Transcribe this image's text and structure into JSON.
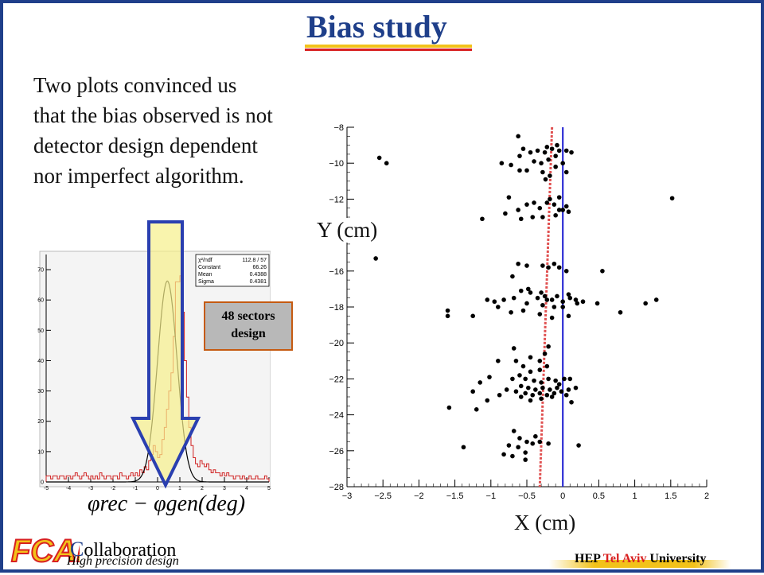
{
  "slide": {
    "title": "Bias study",
    "intro_lines": [
      "Two plots convinced us",
      "that the bias observed is not",
      "detector design dependent",
      "nor imperfect algorithm."
    ],
    "y_axis_label": "Y (cm)",
    "x_axis_label": "X (cm)",
    "sectors_label_line1": "48 sectors",
    "sectors_label_line2": "design",
    "formula_label": "φrec − φgen(deg)",
    "footer": {
      "logo_text": "FCAL",
      "collab_first": "C",
      "collab_rest": "ollaboration",
      "tagline": "High precision design",
      "hep_prefix": "HEP ",
      "hep_city": "Tel Aviv",
      "hep_suffix": " University"
    },
    "colors": {
      "title": "#1f3f8a",
      "accent_yellow": "#f2c21a",
      "accent_red": "#d82020",
      "arrow_border": "#2a3fb0",
      "arrow_fill": "#f7f08a",
      "histogram": "#d02020",
      "fit_curve": "#000000",
      "blue_line": "#1a1ad0",
      "red_dashed_line": "#e05050"
    }
  },
  "chart_data": [
    {
      "type": "bar",
      "title": "",
      "xlabel": "φrec − φgen(deg)",
      "ylabel": "",
      "xlim": [
        -5,
        5
      ],
      "ylim": [
        0,
        75
      ],
      "xticks": [
        -5,
        -4,
        -3,
        -2,
        -1,
        0,
        1,
        2,
        3,
        4,
        5
      ],
      "yticks": [
        0,
        10,
        20,
        30,
        40,
        50,
        60,
        70
      ],
      "bin_width": 0.1,
      "x_start": -5,
      "values": [
        2,
        2,
        1,
        2,
        2,
        1,
        2,
        2,
        1,
        2,
        2,
        1,
        2,
        3,
        2,
        1,
        2,
        3,
        2,
        1,
        2,
        1,
        2,
        1,
        3,
        2,
        1,
        2,
        2,
        1,
        2,
        2,
        1,
        3,
        2,
        2,
        1,
        2,
        3,
        2,
        3,
        2,
        4,
        3,
        5,
        4,
        7,
        9,
        12,
        10,
        8,
        9,
        14,
        18,
        24,
        30,
        36,
        48,
        66,
        66,
        68,
        56,
        40,
        28,
        18,
        12,
        8,
        6,
        5,
        7,
        6,
        5,
        6,
        4,
        3,
        4,
        3,
        3,
        2,
        3,
        2,
        3,
        2,
        2,
        1,
        2,
        2,
        1,
        2,
        1,
        1,
        2,
        1,
        1,
        2,
        1,
        1,
        1,
        2,
        1
      ],
      "fit": {
        "type": "gaussian",
        "constant": 66.26,
        "mean": 0.4388,
        "sigma": 0.4381
      },
      "stats_box": [
        {
          "label": "χ²/ndf",
          "value": "112.8  /  57"
        },
        {
          "label": "Constant",
          "value": "66.26"
        },
        {
          "label": "Mean",
          "value": "0.4388"
        },
        {
          "label": "Sigma",
          "value": "0.4381"
        }
      ]
    },
    {
      "type": "scatter",
      "title": "",
      "xlabel": "X (cm)",
      "ylabel": "Y (cm)",
      "xlim": [
        -3,
        2
      ],
      "ylim": [
        -28,
        -8
      ],
      "xticks": [
        -3,
        -2.5,
        -2,
        -1.5,
        -1,
        -0.5,
        0,
        0.5,
        1,
        1.5,
        2
      ],
      "yticks": [
        -8,
        -10,
        -12,
        -14,
        -16,
        -18,
        -20,
        -22,
        -24,
        -26,
        -28
      ],
      "vertical_lines": [
        {
          "style": "solid",
          "color": "blue",
          "x": 0.0
        },
        {
          "style": "dashed",
          "color": "red",
          "x_top": -0.15,
          "x_bottom": -0.32
        }
      ],
      "points": [
        [
          -0.62,
          -8.5
        ],
        [
          -0.55,
          -9.2
        ],
        [
          -0.6,
          -9.6
        ],
        [
          -0.45,
          -9.4
        ],
        [
          -0.35,
          -9.3
        ],
        [
          -0.25,
          -9.4
        ],
        [
          -0.15,
          -9.2
        ],
        [
          -0.05,
          -9.3
        ],
        [
          0.05,
          -9.3
        ],
        [
          0.12,
          -9.4
        ],
        [
          -0.4,
          -9.9
        ],
        [
          -0.3,
          -10.0
        ],
        [
          -0.2,
          -9.8
        ],
        [
          -0.1,
          -10.2
        ],
        [
          0.0,
          -10.0
        ],
        [
          -0.5,
          -10.4
        ],
        [
          -0.28,
          -10.5
        ],
        [
          -0.18,
          -10.7
        ],
        [
          -0.72,
          -10.1
        ],
        [
          -0.85,
          -10.0
        ],
        [
          -0.6,
          -10.4
        ],
        [
          0.05,
          -10.5
        ],
        [
          -0.1,
          -9.6
        ],
        [
          -0.08,
          -9.0
        ],
        [
          -0.22,
          -9.1
        ],
        [
          -2.55,
          -9.7
        ],
        [
          -2.45,
          -10.0
        ],
        [
          -0.24,
          -10.9
        ],
        [
          -0.62,
          -12.6
        ],
        [
          -0.5,
          -12.3
        ],
        [
          -0.4,
          -12.2
        ],
        [
          -0.32,
          -12.5
        ],
        [
          -0.22,
          -12.2
        ],
        [
          -0.12,
          -12.3
        ],
        [
          -0.05,
          -12.6
        ],
        [
          0.05,
          -12.4
        ],
        [
          -0.18,
          -12.0
        ],
        [
          -0.28,
          -13.0
        ],
        [
          -0.42,
          -13.0
        ],
        [
          -0.58,
          -13.1
        ],
        [
          -0.1,
          -12.9
        ],
        [
          0.0,
          -12.6
        ],
        [
          -0.8,
          -12.8
        ],
        [
          -1.12,
          -13.1
        ],
        [
          -0.75,
          -11.9
        ],
        [
          -0.05,
          -11.9
        ],
        [
          1.52,
          -11.95
        ],
        [
          0.08,
          -12.7
        ],
        [
          -2.6,
          -15.3
        ],
        [
          -0.62,
          -15.6
        ],
        [
          -0.5,
          -15.7
        ],
        [
          -0.28,
          -15.7
        ],
        [
          -0.2,
          -15.8
        ],
        [
          -0.12,
          -15.6
        ],
        [
          -0.05,
          -15.8
        ],
        [
          0.05,
          -16.0
        ],
        [
          0.55,
          -16.0
        ],
        [
          -0.7,
          -16.3
        ],
        [
          -0.58,
          -17.1
        ],
        [
          -0.45,
          -17.2
        ],
        [
          -0.35,
          -17.5
        ],
        [
          -0.25,
          -17.4
        ],
        [
          -0.15,
          -17.6
        ],
        [
          -0.08,
          -17.4
        ],
        [
          0.0,
          -17.7
        ],
        [
          0.1,
          -17.5
        ],
        [
          0.18,
          -17.6
        ],
        [
          -0.68,
          -17.5
        ],
        [
          -0.82,
          -17.6
        ],
        [
          -0.95,
          -17.7
        ],
        [
          -1.05,
          -17.6
        ],
        [
          -0.5,
          -17.8
        ],
        [
          -0.28,
          -17.9
        ],
        [
          -0.22,
          -17.6
        ],
        [
          -0.12,
          -18.0
        ],
        [
          0.0,
          -18.0
        ],
        [
          0.2,
          -17.8
        ],
        [
          0.08,
          -17.3
        ],
        [
          0.28,
          -17.7
        ],
        [
          0.48,
          -17.8
        ],
        [
          -0.55,
          -18.2
        ],
        [
          -0.32,
          -18.4
        ],
        [
          -0.72,
          -18.3
        ],
        [
          -0.9,
          -18.0
        ],
        [
          -1.25,
          -18.5
        ],
        [
          -1.6,
          -18.2
        ],
        [
          -1.6,
          -18.5
        ],
        [
          -0.3,
          -17.2
        ],
        [
          -0.48,
          -17.0
        ],
        [
          0.08,
          -18.5
        ],
        [
          -0.15,
          -18.6
        ],
        [
          1.15,
          -17.8
        ],
        [
          1.3,
          -17.6
        ],
        [
          0.8,
          -18.3
        ],
        [
          -0.2,
          -20.2
        ],
        [
          -0.25,
          -20.6
        ],
        [
          -0.45,
          -20.8
        ],
        [
          -0.32,
          -21.0
        ],
        [
          -0.55,
          -21.3
        ],
        [
          -0.22,
          -21.3
        ],
        [
          -0.32,
          -21.5
        ],
        [
          -0.45,
          -21.6
        ],
        [
          -0.6,
          -21.8
        ],
        [
          -0.7,
          -22.0
        ],
        [
          -0.52,
          -22.0
        ],
        [
          -0.4,
          -22.1
        ],
        [
          -0.3,
          -22.2
        ],
        [
          -0.2,
          -22.0
        ],
        [
          -0.1,
          -22.1
        ],
        [
          -0.05,
          -22.3
        ],
        [
          0.02,
          -22.0
        ],
        [
          0.1,
          -22.0
        ],
        [
          -0.58,
          -22.4
        ],
        [
          -0.48,
          -22.5
        ],
        [
          -0.38,
          -22.6
        ],
        [
          -0.28,
          -22.5
        ],
        [
          -0.18,
          -22.6
        ],
        [
          -0.08,
          -22.5
        ],
        [
          -0.65,
          -22.7
        ],
        [
          -0.52,
          -22.8
        ],
        [
          -0.42,
          -22.9
        ],
        [
          -0.32,
          -22.8
        ],
        [
          -0.22,
          -22.9
        ],
        [
          -0.12,
          -22.8
        ],
        [
          -0.02,
          -22.7
        ],
        [
          0.08,
          -22.6
        ],
        [
          -0.58,
          -23.0
        ],
        [
          -0.45,
          -23.2
        ],
        [
          -0.3,
          -23.1
        ],
        [
          -0.15,
          -23.0
        ],
        [
          0.05,
          -22.9
        ],
        [
          0.18,
          -22.5
        ],
        [
          -0.78,
          -22.6
        ],
        [
          -0.88,
          -22.9
        ],
        [
          -0.9,
          -21.0
        ],
        [
          -1.02,
          -21.9
        ],
        [
          -1.15,
          -22.2
        ],
        [
          -1.25,
          -22.7
        ],
        [
          -1.05,
          -23.2
        ],
        [
          -1.2,
          -23.7
        ],
        [
          -1.58,
          -23.6
        ],
        [
          0.12,
          -23.3
        ],
        [
          -0.65,
          -21.0
        ],
        [
          -0.68,
          -20.3
        ],
        [
          -0.38,
          -25.2
        ],
        [
          -0.5,
          -25.5
        ],
        [
          -0.6,
          -25.3
        ],
        [
          -0.42,
          -25.6
        ],
        [
          -0.32,
          -25.5
        ],
        [
          -0.2,
          -25.6
        ],
        [
          -0.62,
          -25.8
        ],
        [
          -0.75,
          -25.7
        ],
        [
          -0.52,
          -26.1
        ],
        [
          -0.7,
          -26.3
        ],
        [
          -0.82,
          -26.2
        ],
        [
          -1.38,
          -25.8
        ],
        [
          -0.68,
          -24.9
        ],
        [
          -0.52,
          -26.5
        ],
        [
          0.22,
          -25.7
        ]
      ]
    }
  ]
}
